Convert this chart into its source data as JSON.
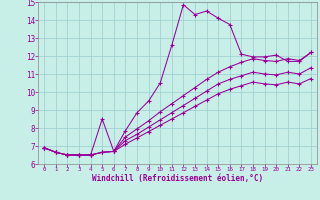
{
  "xlabel": "Windchill (Refroidissement éolien,°C)",
  "bg_color": "#c8eee8",
  "grid_color": "#99cccc",
  "line_color": "#990099",
  "xlim": [
    -0.5,
    23.5
  ],
  "ylim": [
    6,
    15
  ],
  "xticks": [
    0,
    1,
    2,
    3,
    4,
    5,
    6,
    7,
    8,
    9,
    10,
    11,
    12,
    13,
    14,
    15,
    16,
    17,
    18,
    19,
    20,
    21,
    22,
    23
  ],
  "yticks": [
    6,
    7,
    8,
    9,
    10,
    11,
    12,
    13,
    14,
    15
  ],
  "line1_x": [
    0,
    1,
    2,
    3,
    4,
    5,
    6,
    7,
    8,
    9,
    10,
    11,
    12,
    13,
    14,
    15,
    16,
    17,
    18,
    19,
    20,
    21,
    22,
    23
  ],
  "line1_y": [
    6.9,
    6.65,
    6.5,
    6.5,
    6.5,
    8.5,
    6.7,
    7.85,
    8.85,
    9.5,
    10.5,
    12.6,
    14.85,
    14.3,
    14.5,
    14.1,
    13.75,
    12.1,
    11.95,
    11.95,
    12.05,
    11.7,
    11.7,
    12.2
  ],
  "line2_x": [
    0,
    1,
    2,
    3,
    4,
    5,
    6,
    7,
    8,
    9,
    10,
    11,
    12,
    13,
    14,
    15,
    16,
    17,
    18,
    19,
    20,
    21,
    22,
    23
  ],
  "line2_y": [
    6.9,
    6.65,
    6.5,
    6.5,
    6.5,
    6.65,
    6.7,
    7.5,
    7.95,
    8.4,
    8.9,
    9.35,
    9.8,
    10.25,
    10.7,
    11.1,
    11.4,
    11.65,
    11.85,
    11.75,
    11.7,
    11.85,
    11.75,
    12.2
  ],
  "line3_x": [
    0,
    1,
    2,
    3,
    4,
    5,
    6,
    7,
    8,
    9,
    10,
    11,
    12,
    13,
    14,
    15,
    16,
    17,
    18,
    19,
    20,
    21,
    22,
    23
  ],
  "line3_y": [
    6.9,
    6.65,
    6.5,
    6.5,
    6.5,
    6.65,
    6.7,
    7.3,
    7.65,
    8.05,
    8.45,
    8.85,
    9.25,
    9.65,
    10.05,
    10.45,
    10.7,
    10.9,
    11.1,
    11.0,
    10.95,
    11.1,
    11.0,
    11.35
  ],
  "line4_x": [
    0,
    1,
    2,
    3,
    4,
    5,
    6,
    7,
    8,
    9,
    10,
    11,
    12,
    13,
    14,
    15,
    16,
    17,
    18,
    19,
    20,
    21,
    22,
    23
  ],
  "line4_y": [
    6.9,
    6.65,
    6.5,
    6.5,
    6.5,
    6.65,
    6.7,
    7.1,
    7.45,
    7.8,
    8.15,
    8.5,
    8.85,
    9.2,
    9.55,
    9.9,
    10.15,
    10.35,
    10.55,
    10.45,
    10.4,
    10.55,
    10.45,
    10.75
  ]
}
